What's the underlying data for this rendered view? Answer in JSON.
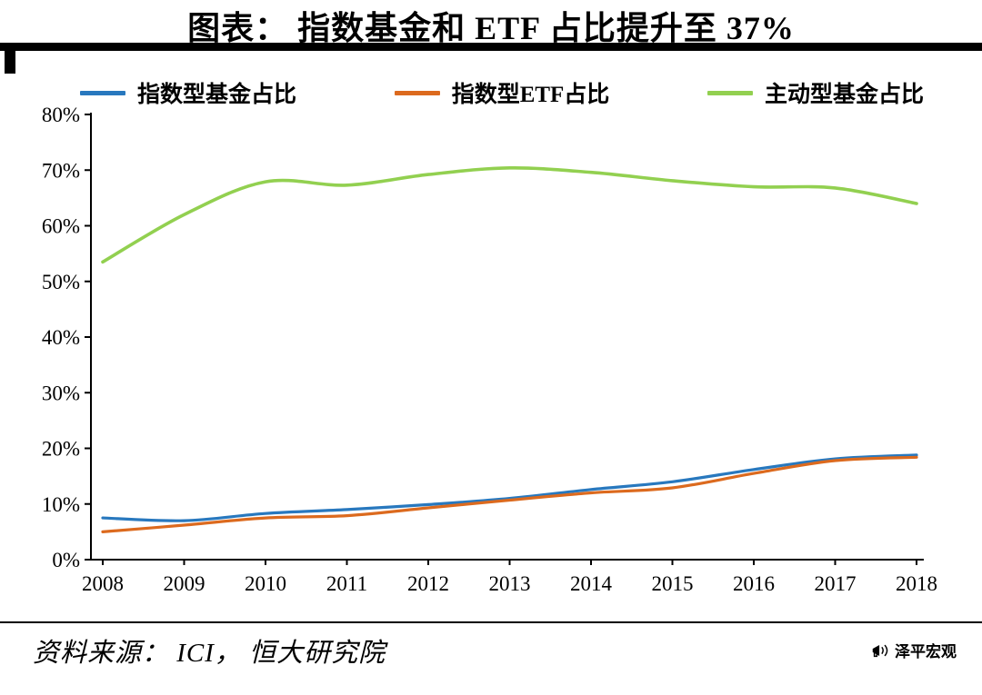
{
  "title": "图表： 指数基金和 ETF 占比提升至 37%",
  "legend": {
    "items": [
      {
        "label": "指数型基金占比",
        "color": "#2878BE"
      },
      {
        "label": "指数型ETF占比",
        "color": "#DC6A1E"
      },
      {
        "label": "主动型基金占比",
        "color": "#92D050"
      }
    ]
  },
  "chart_data": {
    "type": "line",
    "x": [
      2008,
      2009,
      2010,
      2011,
      2012,
      2013,
      2014,
      2015,
      2016,
      2017,
      2018
    ],
    "series": [
      {
        "name": "指数型基金占比",
        "color": "#2878BE",
        "values": [
          7.5,
          7.0,
          8.3,
          9.0,
          9.9,
          11.0,
          12.6,
          14.0,
          16.2,
          18.1,
          18.8
        ]
      },
      {
        "name": "指数型ETF占比",
        "color": "#DC6A1E",
        "values": [
          5.0,
          6.2,
          7.5,
          7.9,
          9.3,
          10.7,
          12.0,
          12.9,
          15.5,
          17.8,
          18.4
        ]
      },
      {
        "name": "主动型基金占比",
        "color": "#92D050",
        "values": [
          53.5,
          62.0,
          67.9,
          67.3,
          69.2,
          70.4,
          69.6,
          68.1,
          67.0,
          66.8,
          64.0
        ]
      }
    ],
    "title": "图表： 指数基金和 ETF 占比提升至 37%",
    "xlabel": "",
    "ylabel": "",
    "ylim": [
      0,
      80
    ],
    "ytick_step": 10,
    "ytick_suffix": "%",
    "grid": false,
    "legend_position": "top"
  },
  "footer": {
    "source": "资料来源： ICI， 恒大研究院",
    "brand": "泽平宏观"
  }
}
